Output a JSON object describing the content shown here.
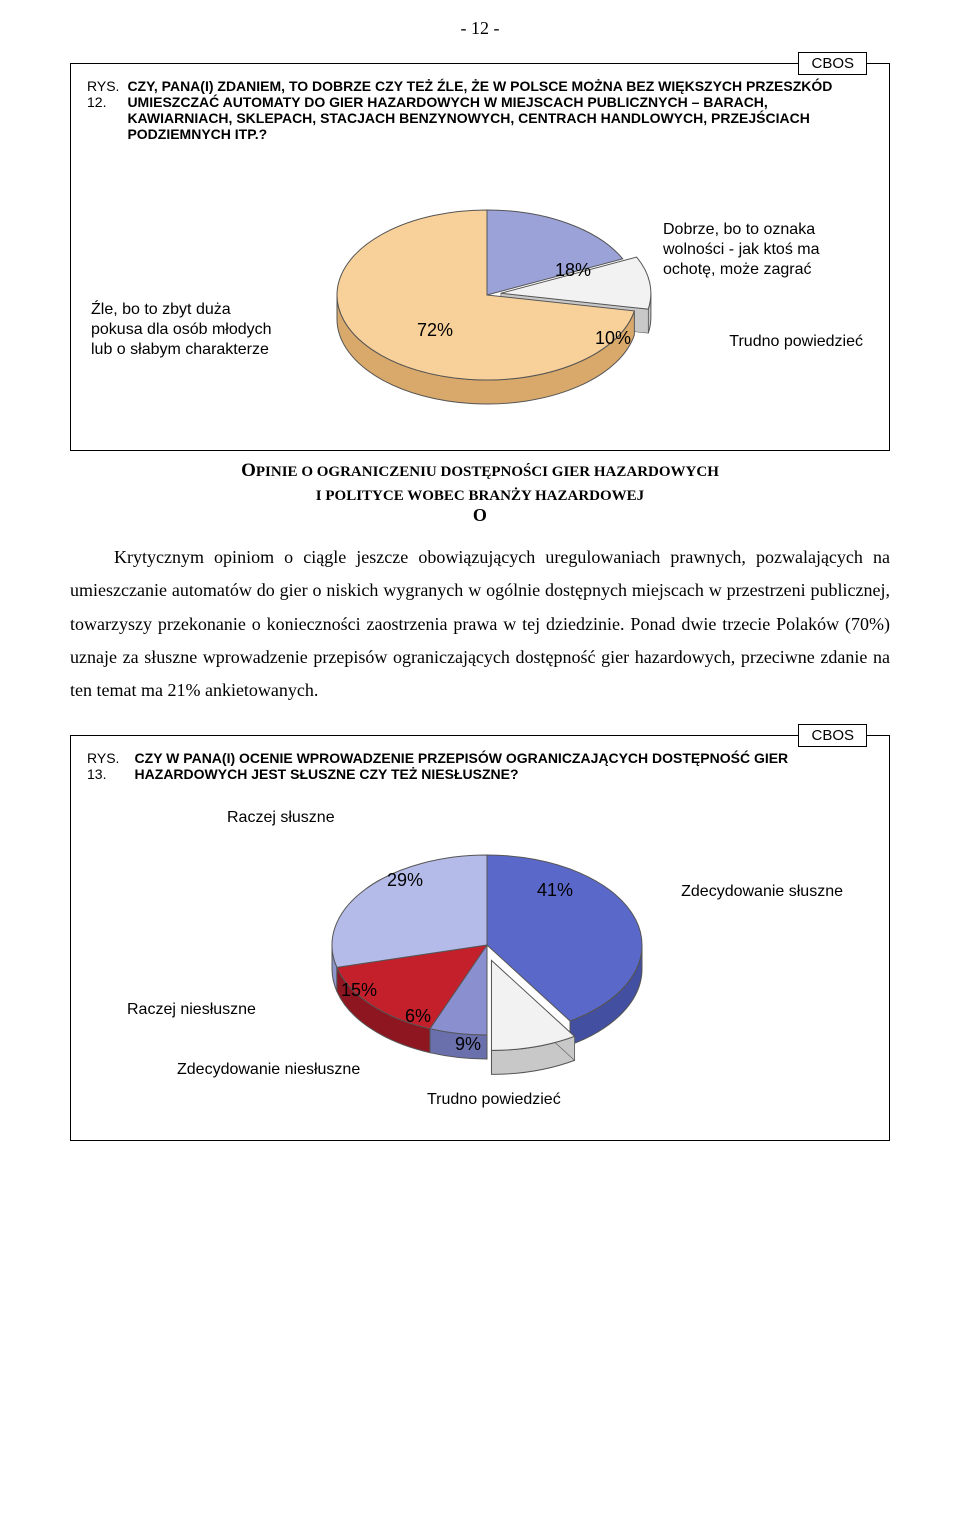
{
  "page_number": "- 12 -",
  "cbos_tag": "CBOS",
  "fig1": {
    "label": "RYS. 12.",
    "title": "CZY, PANA(I) ZDANIEM, TO DOBRZE CZY TEŻ ŹLE, ŻE W POLSCE MOŻNA BEZ WIĘKSZYCH PRZESZKÓD UMIESZCZAĆ AUTOMATY DO GIER HAZARDOWYCH W MIEJSCACH PUBLICZNYCH – BARACH, KAWIARNIACH, SKLEPACH, STACJACH BENZYNOWYCH, CENTRACH HANDLOWYCH, PRZEJŚCIACH PODZIEMNYCH ITP.?",
    "left_label": "Źle, bo to zbyt duża\npokusa dla osób młodych\nlub o słabym charakterze",
    "right_top_label": "Dobrze, bo to oznaka\nwolności - jak ktoś ma\nochotę, może zagrać",
    "right_bottom_label": "Trudno powiedzieć",
    "slices": [
      {
        "name": "zle",
        "pct": 72,
        "label": "72%",
        "color": "#f8d09a",
        "side": "#d9a96b"
      },
      {
        "name": "dobrze",
        "pct": 18,
        "label": "18%",
        "color": "#9aa2d8",
        "side": "#7880b8"
      },
      {
        "name": "trudno",
        "pct": 10,
        "label": "10%",
        "color": "#f2f2f2",
        "side": "#c8c8c8"
      }
    ],
    "stroke": "#555555",
    "depth": 24
  },
  "section_heading": "OPINIE O OGRANICZENIU DOSTĘPNOŚCI GIER HAZARDOWYCH",
  "section_sub": "I POLITYCE WOBEC BRANŻY HAZARDOWEJ",
  "paragraph": "Krytycznym opiniom o ciągle jeszcze obowiązujących uregulowaniach prawnych, pozwalających na umieszczanie automatów do gier o niskich wygranych w ogólnie dostępnych miejscach w przestrzeni publicznej, towarzyszy przekonanie o konieczności zaostrzenia prawa w tej dziedzinie. Ponad dwie trzecie Polaków (70%) uznaje za słuszne wprowadzenie przepisów ograniczających dostępność gier hazardowych, przeciwne zdanie na ten temat ma 21% ankietowanych.",
  "fig2": {
    "label": "RYS. 13.",
    "title": "CZY W PANA(I) OCENIE WPROWADZENIE PRZEPISÓW OGRANICZAJĄCYCH DOSTĘPNOŚĆ GIER HAZARDOWYCH JEST SŁUSZNE CZY TEŻ NIESŁUSZNE?",
    "labels": {
      "raczej_sluszne": "Raczej słuszne",
      "zdecydowanie_sluszne": "Zdecydowanie słuszne",
      "raczej_niesluszne": "Raczej niesłuszne",
      "zdecydowanie_niesluszne": "Zdecydowanie niesłuszne",
      "trudno": "Trudno powiedzieć"
    },
    "slices": [
      {
        "name": "zdecydowanie_sluszne",
        "pct": 41,
        "label": "41%",
        "color": "#5a69c9",
        "side": "#434fa0"
      },
      {
        "name": "raczej_sluszne",
        "pct": 29,
        "label": "29%",
        "color": "#b4bbe8",
        "side": "#8d96cc"
      },
      {
        "name": "raczej_niesluszne",
        "pct": 15,
        "label": "15%",
        "color": "#c3202c",
        "side": "#8e1620"
      },
      {
        "name": "zdecydowanie_niesluszne",
        "pct": 6,
        "label": "6%",
        "color": "#8a8fd0",
        "side": "#6a70ab"
      },
      {
        "name": "trudno",
        "pct": 9,
        "label": "9%",
        "color": "#f2f2f2",
        "side": "#c8c8c8"
      }
    ],
    "stroke": "#555555",
    "depth": 24
  }
}
